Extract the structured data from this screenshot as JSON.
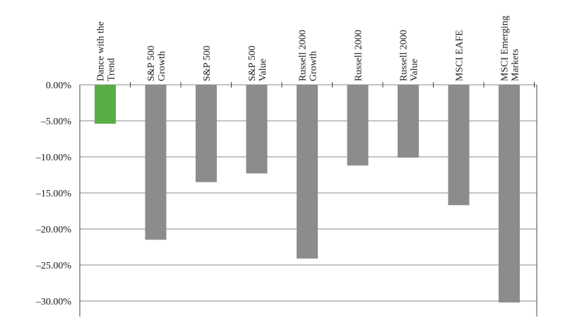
{
  "chart_data": {
    "type": "bar",
    "title": "",
    "xlabel": "",
    "ylabel": "",
    "categories": [
      [
        "Dance with the",
        "Trend"
      ],
      [
        "S&P 500",
        "Growth"
      ],
      [
        "S&P 500"
      ],
      [
        "S&P 500",
        "Value"
      ],
      [
        "Russell 2000",
        "Growth"
      ],
      [
        "Russell 2000"
      ],
      [
        "Russell 2000",
        "Value"
      ],
      [
        "MSCI EAFE"
      ],
      [
        "MSCI Emerging",
        "Markets"
      ]
    ],
    "values": [
      -5.4,
      -21.5,
      -13.5,
      -12.3,
      -24.1,
      -11.2,
      -10.1,
      -16.7,
      -30.2
    ],
    "bar_colors": [
      "#5aac44",
      "#8c8c8c",
      "#8c8c8c",
      "#8c8c8c",
      "#8c8c8c",
      "#8c8c8c",
      "#8c8c8c",
      "#8c8c8c",
      "#8c8c8c"
    ],
    "ylim": [
      -30,
      0
    ],
    "yticks": [
      0,
      -5,
      -10,
      -15,
      -20,
      -25,
      -30
    ],
    "ytick_labels": [
      "0.00%",
      "–5.00%",
      "–10.00%",
      "–15.00%",
      "–20.00%",
      "–25.00%",
      "–30.00%"
    ],
    "grid": true,
    "legend": "none"
  }
}
